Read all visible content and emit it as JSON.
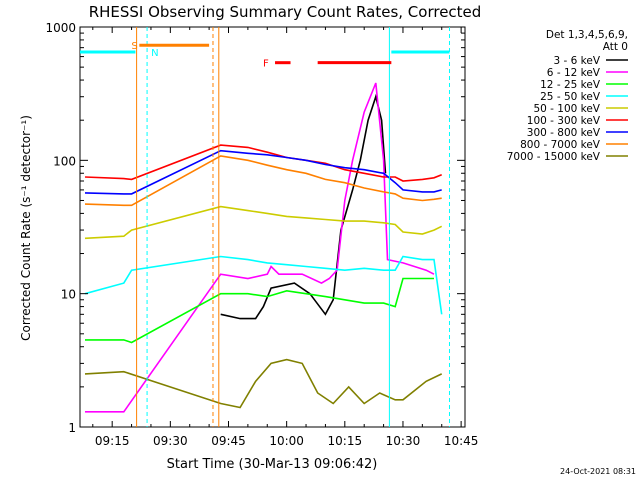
{
  "chart_data": {
    "type": "line",
    "title": "RHESSI Observing Summary Count Rates, Corrected",
    "xlabel": "Start Time (30-Mar-13 09:06:42)",
    "ylabel": "Corrected Count Rate (s⁻¹ detector⁻¹)",
    "y_scale": "log",
    "ylim": [
      1,
      1000
    ],
    "xlim_minutes_after_0900": [
      6.7,
      106
    ],
    "x_ticks": [
      "09:15",
      "09:30",
      "09:45",
      "10:00",
      "10:15",
      "10:30",
      "10:45"
    ],
    "x_tick_minutes": [
      15,
      30,
      45,
      60,
      75,
      90,
      105
    ],
    "y_ticks": [
      "1",
      "10",
      "100",
      "1000"
    ],
    "y_tick_values": [
      1,
      10,
      100,
      1000
    ],
    "grid": false,
    "legend_position": "right",
    "legend_header": [
      "Det 1,3,4,5,6,9,",
      "Att 0"
    ],
    "timestamp": "24-Oct-2021 08:31",
    "series": [
      {
        "name": "3 - 6 keV",
        "color": "#000000",
        "points": [
          [
            43,
            7
          ],
          [
            48,
            6.5
          ],
          [
            52,
            6.5
          ],
          [
            54,
            8
          ],
          [
            56,
            11
          ],
          [
            62,
            12
          ],
          [
            66,
            10
          ],
          [
            70,
            7
          ],
          [
            72,
            9
          ],
          [
            74,
            30
          ],
          [
            77,
            60
          ],
          [
            79,
            100
          ],
          [
            81,
            200
          ],
          [
            83,
            300
          ],
          [
            84.5,
            200
          ],
          [
            85.5,
            80
          ]
        ]
      },
      {
        "name": "6 - 12 keV",
        "color": "#ff00ff",
        "points": [
          [
            8,
            1.3
          ],
          [
            18,
            1.3
          ],
          [
            43,
            14
          ],
          [
            50,
            13
          ],
          [
            55,
            14
          ],
          [
            56,
            16
          ],
          [
            58,
            14
          ],
          [
            64,
            14
          ],
          [
            69,
            12
          ],
          [
            71,
            13
          ],
          [
            73,
            15
          ],
          [
            75,
            50
          ],
          [
            77,
            100
          ],
          [
            80,
            230
          ],
          [
            83,
            380
          ],
          [
            85,
            100
          ],
          [
            86,
            18
          ],
          [
            90,
            17
          ],
          [
            96,
            15
          ],
          [
            98,
            14
          ]
        ]
      },
      {
        "name": "12 - 25 keV",
        "color": "#00ff00",
        "points": [
          [
            8,
            4.5
          ],
          [
            18,
            4.5
          ],
          [
            20,
            4.3
          ],
          [
            43,
            10
          ],
          [
            50,
            10
          ],
          [
            55,
            9.5
          ],
          [
            60,
            10.5
          ],
          [
            65,
            10
          ],
          [
            70,
            9.5
          ],
          [
            75,
            9
          ],
          [
            80,
            8.5
          ],
          [
            85,
            8.5
          ],
          [
            88,
            8
          ],
          [
            90,
            13
          ],
          [
            95,
            13
          ],
          [
            98,
            13
          ]
        ]
      },
      {
        "name": "25 - 50 keV",
        "color": "#00ffff",
        "points": [
          [
            8,
            10
          ],
          [
            18,
            12
          ],
          [
            20,
            15
          ],
          [
            43,
            19
          ],
          [
            50,
            18
          ],
          [
            55,
            17
          ],
          [
            60,
            16.5
          ],
          [
            65,
            16
          ],
          [
            70,
            15.5
          ],
          [
            75,
            15
          ],
          [
            80,
            15.5
          ],
          [
            85,
            15
          ],
          [
            88,
            15
          ],
          [
            90,
            19
          ],
          [
            95,
            18
          ],
          [
            98,
            18
          ],
          [
            100,
            7
          ]
        ]
      },
      {
        "name": "50 - 100 keV",
        "color": "#cccc00",
        "points": [
          [
            8,
            26
          ],
          [
            18,
            27
          ],
          [
            20,
            30
          ],
          [
            43,
            45
          ],
          [
            50,
            42
          ],
          [
            55,
            40
          ],
          [
            60,
            38
          ],
          [
            65,
            37
          ],
          [
            70,
            36
          ],
          [
            75,
            35
          ],
          [
            80,
            35
          ],
          [
            85,
            34
          ],
          [
            88,
            33
          ],
          [
            90,
            29
          ],
          [
            95,
            28
          ],
          [
            98,
            30
          ],
          [
            100,
            32
          ]
        ]
      },
      {
        "name": "100 - 300 keV",
        "color": "#ff0000",
        "points": [
          [
            8,
            75
          ],
          [
            18,
            73
          ],
          [
            20,
            72
          ],
          [
            43,
            130
          ],
          [
            50,
            125
          ],
          [
            55,
            115
          ],
          [
            60,
            105
          ],
          [
            65,
            100
          ],
          [
            70,
            95
          ],
          [
            75,
            85
          ],
          [
            80,
            80
          ],
          [
            85,
            75
          ],
          [
            88,
            75
          ],
          [
            90,
            70
          ],
          [
            95,
            72
          ],
          [
            98,
            74
          ],
          [
            100,
            78
          ]
        ]
      },
      {
        "name": "300 - 800 keV",
        "color": "#0000ff",
        "points": [
          [
            8,
            57
          ],
          [
            18,
            56
          ],
          [
            20,
            56
          ],
          [
            43,
            118
          ],
          [
            50,
            113
          ],
          [
            55,
            110
          ],
          [
            60,
            105
          ],
          [
            65,
            100
          ],
          [
            70,
            93
          ],
          [
            75,
            88
          ],
          [
            80,
            85
          ],
          [
            85,
            80
          ],
          [
            88,
            68
          ],
          [
            90,
            60
          ],
          [
            95,
            58
          ],
          [
            98,
            58
          ],
          [
            100,
            60
          ]
        ]
      },
      {
        "name": "800 - 7000 keV",
        "color": "#ff8000",
        "points": [
          [
            8,
            47
          ],
          [
            18,
            46
          ],
          [
            20,
            46
          ],
          [
            43,
            108
          ],
          [
            50,
            100
          ],
          [
            55,
            92
          ],
          [
            60,
            85
          ],
          [
            65,
            80
          ],
          [
            70,
            72
          ],
          [
            75,
            68
          ],
          [
            80,
            62
          ],
          [
            85,
            58
          ],
          [
            88,
            56
          ],
          [
            90,
            52
          ],
          [
            95,
            50
          ],
          [
            98,
            51
          ],
          [
            100,
            52
          ]
        ]
      },
      {
        "name": "7000 - 15000 keV",
        "color": "#808000",
        "points": [
          [
            8,
            2.5
          ],
          [
            18,
            2.6
          ],
          [
            43,
            1.5
          ],
          [
            48,
            1.4
          ],
          [
            52,
            2.2
          ],
          [
            56,
            3
          ],
          [
            60,
            3.2
          ],
          [
            64,
            3
          ],
          [
            68,
            1.8
          ],
          [
            72,
            1.5
          ],
          [
            76,
            2
          ],
          [
            80,
            1.5
          ],
          [
            84,
            1.8
          ],
          [
            88,
            1.6
          ],
          [
            90,
            1.6
          ],
          [
            96,
            2.2
          ],
          [
            100,
            2.5
          ]
        ]
      }
    ],
    "annotations": [
      {
        "label": "S",
        "color": "#ff8000",
        "kind": "state-bar",
        "x_start": 22,
        "x_end": 40,
        "y": 730
      },
      {
        "label": "N",
        "color": "#00ffff",
        "kind": "state-bar",
        "segments": [
          [
            6.7,
            21
          ],
          [
            87,
            102
          ]
        ],
        "y": 650
      },
      {
        "label": "F",
        "color": "#ff0000",
        "kind": "state-bar",
        "segments": [
          [
            57,
            61
          ],
          [
            68,
            87
          ]
        ],
        "y": 540
      }
    ],
    "vertical_lines": [
      {
        "x": 21.3,
        "color": "#ff8000",
        "style": "solid"
      },
      {
        "x": 24,
        "color": "#00ffff",
        "style": "dashed"
      },
      {
        "x": 41,
        "color": "#ff8000",
        "style": "dashed"
      },
      {
        "x": 42.5,
        "color": "#ff8000",
        "style": "solid"
      },
      {
        "x": 86.5,
        "color": "#00ffff",
        "style": "solid"
      },
      {
        "x": 102,
        "color": "#00ffff",
        "style": "dashed"
      }
    ]
  }
}
